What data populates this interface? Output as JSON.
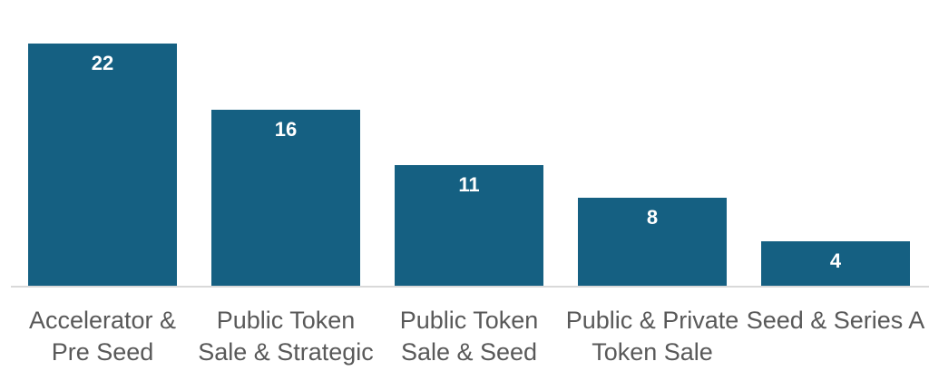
{
  "colors": {
    "bar_fill": "#156082",
    "value_label": "#FFFFFF",
    "category_label": "#595959",
    "axis_line": "#D9D9D9",
    "background": "#FFFFFF"
  },
  "chart_data": {
    "type": "bar",
    "title": "",
    "xlabel": "",
    "ylabel": "",
    "categories": [
      "Accelerator & Pre Seed",
      "Public Token Sale & Strategic",
      "Public Token Sale & Seed",
      "Public & Private Token Sale",
      "Seed & Series A"
    ],
    "category_label_lines": [
      [
        "Accelerator &",
        "Pre Seed"
      ],
      [
        "Public Token",
        "Sale & Strategic"
      ],
      [
        "Public Token",
        "Sale & Seed"
      ],
      [
        "Public & Private",
        "Token Sale"
      ],
      [
        "Seed & Series A"
      ]
    ],
    "values": [
      22,
      16,
      11,
      8,
      4
    ],
    "data_labels": [
      22,
      16,
      11,
      8,
      4
    ],
    "ylim": [
      0,
      22
    ],
    "grid": false,
    "legend": false,
    "data_labels_position": "inside-top"
  }
}
